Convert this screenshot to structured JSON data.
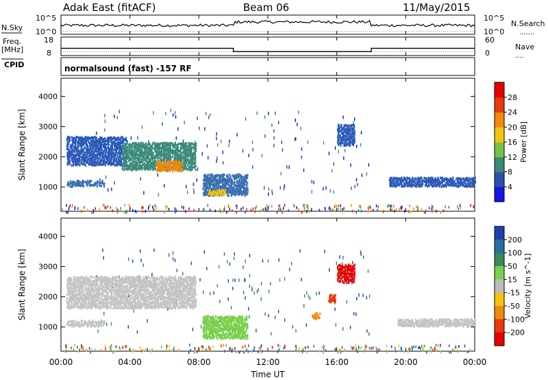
{
  "header": {
    "station": "Adak East (fitACF)",
    "beam": "Beam 06",
    "date": "11/May/2015"
  },
  "left_labels": {
    "nsky": "N.Sky",
    "freq_line1": "Freq.",
    "freq_line2": "[MHz]",
    "cpid": "CPID"
  },
  "right_labels": {
    "nsearch": "N.Search",
    "nave": "Nave"
  },
  "nsky_ticks": [
    "10^5",
    "10^0"
  ],
  "nsearch_ticks": [
    "10^5",
    "10^0"
  ],
  "freq_ticks": [
    "18",
    "8"
  ],
  "nave_ticks": [
    "60",
    "0"
  ],
  "cpid_text": "normalsound (fast) -157 RF",
  "chart_data": [
    {
      "type": "heatmap",
      "name": "Power",
      "ylabel": "Slant Range [km]",
      "xlabel": "",
      "x_ticks": [
        "00:00",
        "04:00",
        "08:00",
        "12:00",
        "16:00",
        "20:00",
        "00:00"
      ],
      "y_ticks": [
        1000,
        2000,
        3000,
        4000
      ],
      "ylim": [
        200,
        4600
      ],
      "xlim_hours": [
        0,
        24
      ],
      "colorbar": {
        "label": "Power [dB]",
        "ticks": [
          4,
          8,
          12,
          16,
          20,
          24,
          28
        ],
        "colors": [
          "#1414e6",
          "#2a4fb0",
          "#3a8a7a",
          "#7bc048",
          "#f2c40f",
          "#f08a0c",
          "#e83a0c",
          "#e60000"
        ]
      },
      "regions": [
        {
          "t0": 0.3,
          "t1": 3.8,
          "r0": 1750,
          "r1": 2700,
          "color": "#2a5ab8"
        },
        {
          "t0": 3.5,
          "t1": 7.8,
          "r0": 1600,
          "r1": 2500,
          "color": "#3a8a7a"
        },
        {
          "t0": 5.5,
          "t1": 7.0,
          "r0": 1550,
          "r1": 1900,
          "color": "#f08a0c"
        },
        {
          "t0": 8.2,
          "t1": 10.8,
          "r0": 750,
          "r1": 1450,
          "color": "#3a6fb0"
        },
        {
          "t0": 8.5,
          "t1": 9.5,
          "r0": 750,
          "r1": 950,
          "color": "#f2c40f"
        },
        {
          "t0": 0.3,
          "t1": 2.5,
          "r0": 1050,
          "r1": 1250,
          "color": "#3a6fb0"
        },
        {
          "t0": 19.0,
          "t1": 24.0,
          "r0": 1050,
          "r1": 1350,
          "color": "#2a5ab8"
        },
        {
          "t0": 16.0,
          "t1": 17.0,
          "r0": 2400,
          "r1": 3100,
          "color": "#2a5ab8"
        }
      ]
    },
    {
      "type": "heatmap",
      "name": "Velocity",
      "ylabel": "Slant Range [km]",
      "xlabel": "Time UT",
      "x_ticks": [
        "00:00",
        "04:00",
        "08:00",
        "12:00",
        "16:00",
        "20:00",
        "00:00"
      ],
      "y_ticks": [
        1000,
        2000,
        3000,
        4000
      ],
      "ylim": [
        200,
        4600
      ],
      "xlim_hours": [
        0,
        24
      ],
      "colorbar": {
        "label": "Velocity [m s^-1]",
        "ticks": [
          "200",
          "100",
          "50",
          "15",
          "-15",
          "-50",
          "-100",
          "-200"
        ],
        "colors": [
          "#1f3fb0",
          "#2a6fa0",
          "#3a8a5a",
          "#7ad04a",
          "#bcbcbc",
          "#f2c40f",
          "#f08a0c",
          "#e83a0c",
          "#e60000"
        ]
      },
      "regions": [
        {
          "t0": 0.3,
          "t1": 7.8,
          "r0": 1650,
          "r1": 2700,
          "color": "#c4c4c4"
        },
        {
          "t0": 8.2,
          "t1": 10.8,
          "r0": 650,
          "r1": 1400,
          "color": "#7ad04a"
        },
        {
          "t0": 0.3,
          "t1": 2.5,
          "r0": 1050,
          "r1": 1250,
          "color": "#c4c4c4"
        },
        {
          "t0": 19.5,
          "t1": 24.0,
          "r0": 1050,
          "r1": 1300,
          "color": "#c4c4c4"
        },
        {
          "t0": 16.0,
          "t1": 17.0,
          "r0": 2500,
          "r1": 3100,
          "color": "#e60000"
        },
        {
          "t0": 14.5,
          "t1": 15.0,
          "r0": 1300,
          "r1": 1500,
          "color": "#f08a0c"
        },
        {
          "t0": 15.5,
          "t1": 15.9,
          "r0": 1850,
          "r1": 2100,
          "color": "#e83a0c"
        }
      ]
    }
  ],
  "freq_series": {
    "steps": [
      {
        "t0": 0,
        "t1": 10,
        "value": 12
      },
      {
        "t0": 10,
        "t1": 18,
        "value": 10
      },
      {
        "t0": 18,
        "t1": 24,
        "value": 12
      }
    ]
  }
}
